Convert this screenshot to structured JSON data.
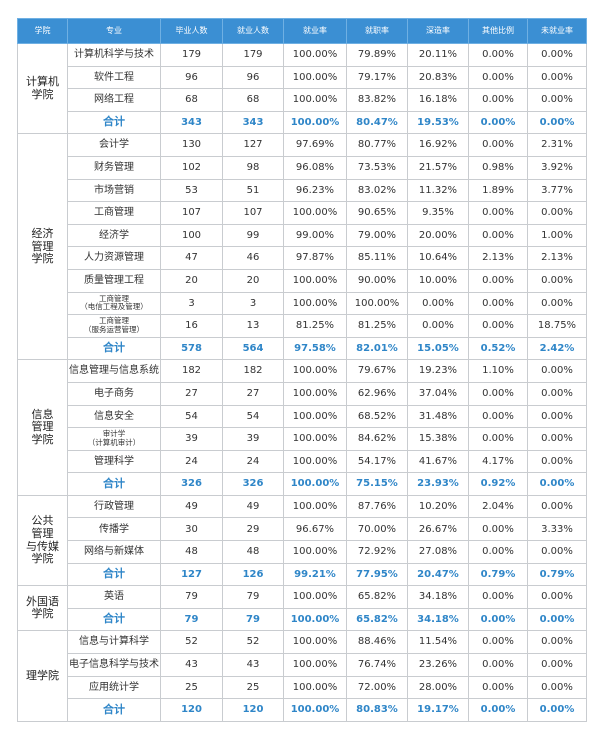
{
  "header": [
    "学院",
    "专业",
    "毕业人数",
    "就业人数",
    "就业率",
    "就职率",
    "深造率",
    "其他比例",
    "未就业率"
  ],
  "groups": [
    {
      "college": "计算机\n学院",
      "rows": [
        [
          "计算机科学与技术",
          "179",
          "179",
          "100.00%",
          "79.89%",
          "20.11%",
          "0.00%",
          "0.00%"
        ],
        [
          "软件工程",
          "96",
          "96",
          "100.00%",
          "79.17%",
          "20.83%",
          "0.00%",
          "0.00%"
        ],
        [
          "网络工程",
          "68",
          "68",
          "100.00%",
          "83.82%",
          "16.18%",
          "0.00%",
          "0.00%"
        ]
      ],
      "total": [
        "合计",
        "343",
        "343",
        "100.00%",
        "80.47%",
        "19.53%",
        "0.00%",
        "0.00%"
      ]
    },
    {
      "college": "经济\n管理\n学院",
      "rows": [
        [
          "会计学",
          "130",
          "127",
          "97.69%",
          "80.77%",
          "16.92%",
          "0.00%",
          "2.31%"
        ],
        [
          "财务管理",
          "102",
          "98",
          "96.08%",
          "73.53%",
          "21.57%",
          "0.98%",
          "3.92%"
        ],
        [
          "市场营销",
          "53",
          "51",
          "96.23%",
          "83.02%",
          "11.32%",
          "1.89%",
          "3.77%"
        ],
        [
          "工商管理",
          "107",
          "107",
          "100.00%",
          "90.65%",
          "9.35%",
          "0.00%",
          "0.00%"
        ],
        [
          "经济学",
          "100",
          "99",
          "99.00%",
          "79.00%",
          "20.00%",
          "0.00%",
          "1.00%"
        ],
        [
          "人力资源管理",
          "47",
          "46",
          "97.87%",
          "85.11%",
          "10.64%",
          "2.13%",
          "2.13%"
        ],
        [
          "质量管理工程",
          "20",
          "20",
          "100.00%",
          "90.00%",
          "10.00%",
          "0.00%",
          "0.00%"
        ],
        [
          "工商管理\n（电信工程及管理）",
          "3",
          "3",
          "100.00%",
          "100.00%",
          "0.00%",
          "0.00%",
          "0.00%"
        ],
        [
          "工商管理\n（服务运营管理）",
          "16",
          "13",
          "81.25%",
          "81.25%",
          "0.00%",
          "0.00%",
          "18.75%"
        ]
      ],
      "total": [
        "合计",
        "578",
        "564",
        "97.58%",
        "82.01%",
        "15.05%",
        "0.52%",
        "2.42%"
      ]
    },
    {
      "college": "信息\n管理\n学院",
      "rows": [
        [
          "信息管理与信息系统",
          "182",
          "182",
          "100.00%",
          "79.67%",
          "19.23%",
          "1.10%",
          "0.00%"
        ],
        [
          "电子商务",
          "27",
          "27",
          "100.00%",
          "62.96%",
          "37.04%",
          "0.00%",
          "0.00%"
        ],
        [
          "信息安全",
          "54",
          "54",
          "100.00%",
          "68.52%",
          "31.48%",
          "0.00%",
          "0.00%"
        ],
        [
          "审计学\n（计算机审计）",
          "39",
          "39",
          "100.00%",
          "84.62%",
          "15.38%",
          "0.00%",
          "0.00%"
        ],
        [
          "管理科学",
          "24",
          "24",
          "100.00%",
          "54.17%",
          "41.67%",
          "4.17%",
          "0.00%"
        ]
      ],
      "total": [
        "合计",
        "326",
        "326",
        "100.00%",
        "75.15%",
        "23.93%",
        "0.92%",
        "0.00%"
      ]
    },
    {
      "college": "公共\n管理\n与传媒\n学院",
      "rows": [
        [
          "行政管理",
          "49",
          "49",
          "100.00%",
          "87.76%",
          "10.20%",
          "2.04%",
          "0.00%"
        ],
        [
          "传播学",
          "30",
          "29",
          "96.67%",
          "70.00%",
          "26.67%",
          "0.00%",
          "3.33%"
        ],
        [
          "网络与新媒体",
          "48",
          "48",
          "100.00%",
          "72.92%",
          "27.08%",
          "0.00%",
          "0.00%"
        ]
      ],
      "total": [
        "合计",
        "127",
        "126",
        "99.21%",
        "77.95%",
        "20.47%",
        "0.79%",
        "0.79%"
      ]
    },
    {
      "college": "外国语\n学院",
      "rows": [
        [
          "英语",
          "79",
          "79",
          "100.00%",
          "65.82%",
          "34.18%",
          "0.00%",
          "0.00%"
        ]
      ],
      "total": [
        "合计",
        "79",
        "79",
        "100.00%",
        "65.82%",
        "34.18%",
        "0.00%",
        "0.00%"
      ]
    },
    {
      "college": "理学院",
      "rows": [
        [
          "信息与计算科学",
          "52",
          "52",
          "100.00%",
          "88.46%",
          "11.54%",
          "0.00%",
          "0.00%"
        ],
        [
          "电子信息科学与技术",
          "43",
          "43",
          "100.00%",
          "76.74%",
          "23.26%",
          "0.00%",
          "0.00%"
        ],
        [
          "应用统计学",
          "25",
          "25",
          "100.00%",
          "72.00%",
          "28.00%",
          "0.00%",
          "0.00%"
        ]
      ],
      "total": [
        "合计",
        "120",
        "120",
        "100.00%",
        "80.83%",
        "19.17%",
        "0.00%",
        "0.00%"
      ]
    }
  ]
}
